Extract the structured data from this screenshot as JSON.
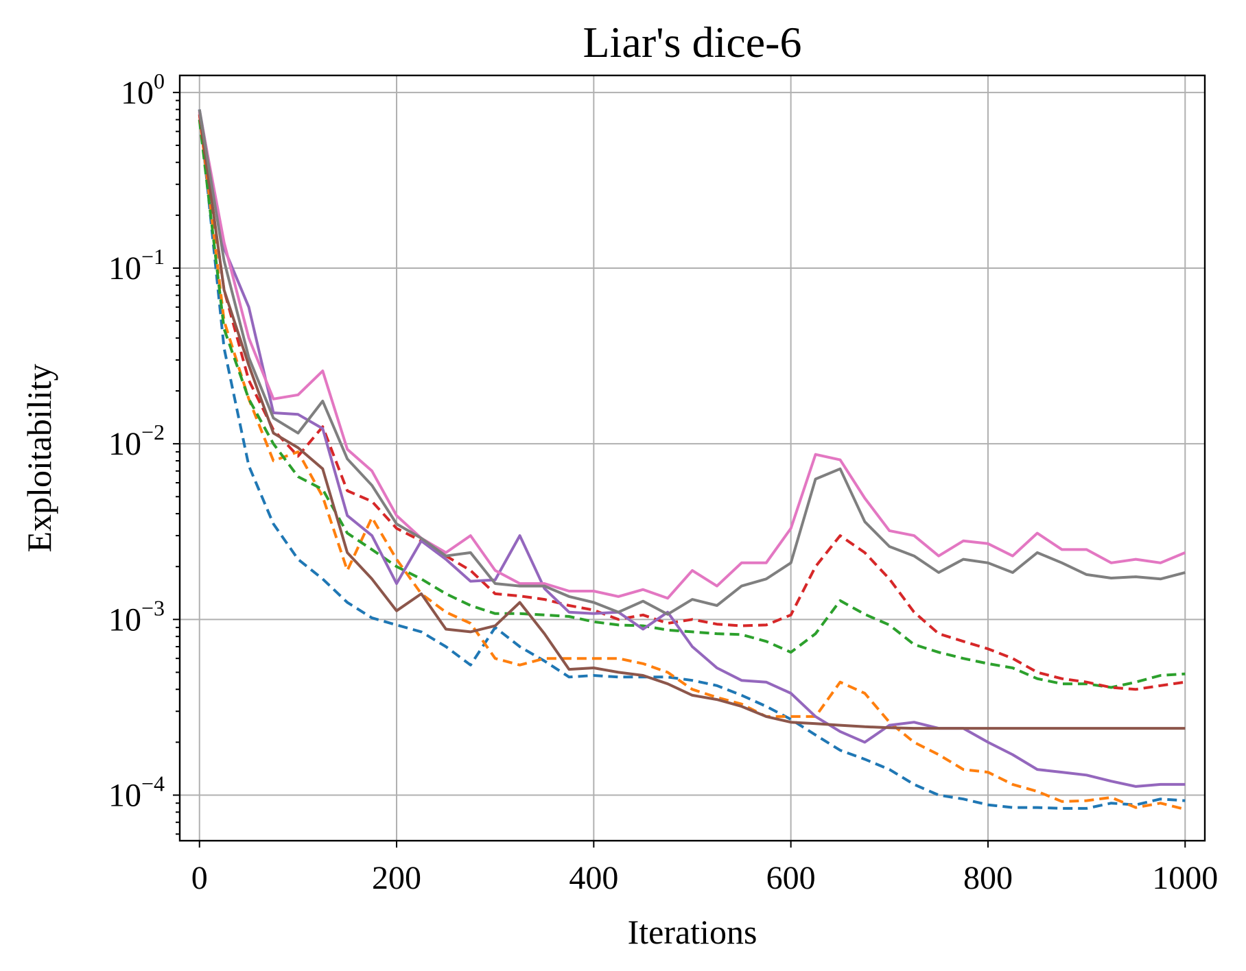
{
  "chart_data": {
    "type": "line",
    "title": "Liar's dice-6",
    "xlabel": "Iterations",
    "ylabel": "Exploitability",
    "xlim": [
      -20,
      1020
    ],
    "ylim": [
      5.5e-05,
      1.25
    ],
    "yscale": "log",
    "grid": true,
    "xticks": [
      0,
      200,
      400,
      600,
      800,
      1000
    ],
    "xtick_labels": [
      "0",
      "200",
      "400",
      "600",
      "800",
      "1000"
    ],
    "yticks": [
      1,
      0.1,
      0.01,
      0.001,
      0.0001
    ],
    "ytick_labels": [
      {
        "base": "10",
        "exp": "0"
      },
      {
        "base": "10",
        "exp": "−1"
      },
      {
        "base": "10",
        "exp": "−2"
      },
      {
        "base": "10",
        "exp": "−3"
      },
      {
        "base": "10",
        "exp": "−4"
      }
    ],
    "x": [
      0,
      25,
      50,
      75,
      100,
      125,
      150,
      175,
      200,
      225,
      250,
      275,
      300,
      325,
      350,
      375,
      400,
      425,
      450,
      475,
      500,
      525,
      550,
      575,
      600,
      625,
      650,
      675,
      700,
      725,
      750,
      775,
      800,
      825,
      850,
      875,
      900,
      925,
      950,
      975,
      1000
    ],
    "series": [
      {
        "color": "#1f77b4",
        "style": "dashed",
        "values": [
          0.8,
          0.035,
          0.0075,
          0.0035,
          0.0022,
          0.0017,
          0.00125,
          0.00102,
          0.00093,
          0.00085,
          0.0007,
          0.00055,
          0.0009,
          0.0007,
          0.00058,
          0.00047,
          0.00048,
          0.00047,
          0.00047,
          0.00047,
          0.00045,
          0.00042,
          0.00037,
          0.00032,
          0.00027,
          0.00022,
          0.00018,
          0.00016,
          0.00014,
          0.000115,
          0.0001,
          9.5e-05,
          8.8e-05,
          8.5e-05,
          8.5e-05,
          8.4e-05,
          8.4e-05,
          9e-05,
          8.8e-05,
          9.5e-05,
          9.3e-05
        ]
      },
      {
        "color": "#ff7f0e",
        "style": "dashed",
        "values": [
          0.75,
          0.05,
          0.018,
          0.008,
          0.009,
          0.005,
          0.0019,
          0.0038,
          0.0022,
          0.0014,
          0.0011,
          0.00095,
          0.0006,
          0.00055,
          0.0006,
          0.0006,
          0.0006,
          0.0006,
          0.00056,
          0.0005,
          0.0004,
          0.00036,
          0.00033,
          0.00028,
          0.00028,
          0.00028,
          0.00044,
          0.00038,
          0.00026,
          0.0002,
          0.00017,
          0.00014,
          0.000135,
          0.000115,
          0.000105,
          9.2e-05,
          9.3e-05,
          9.7e-05,
          8.5e-05,
          9e-05,
          8.3e-05
        ]
      },
      {
        "color": "#2ca02c",
        "style": "dashed",
        "values": [
          0.7,
          0.045,
          0.018,
          0.01,
          0.0065,
          0.0055,
          0.0031,
          0.0025,
          0.002,
          0.0017,
          0.0014,
          0.0012,
          0.00108,
          0.00108,
          0.00106,
          0.00104,
          0.00097,
          0.00093,
          0.00092,
          0.00087,
          0.00085,
          0.00083,
          0.00082,
          0.00075,
          0.00065,
          0.00083,
          0.00128,
          0.00107,
          0.00093,
          0.00072,
          0.00065,
          0.0006,
          0.00056,
          0.00053,
          0.00046,
          0.00043,
          0.00043,
          0.00041,
          0.00044,
          0.00048,
          0.00049
        ]
      },
      {
        "color": "#d62728",
        "style": "dashed",
        "values": [
          0.75,
          0.075,
          0.023,
          0.012,
          0.0085,
          0.0125,
          0.0054,
          0.0047,
          0.0033,
          0.0028,
          0.0023,
          0.0019,
          0.0014,
          0.00136,
          0.0013,
          0.0012,
          0.00113,
          0.001,
          0.00106,
          0.00095,
          0.001,
          0.00094,
          0.00092,
          0.00093,
          0.00106,
          0.002,
          0.003,
          0.0024,
          0.0017,
          0.0011,
          0.00083,
          0.00075,
          0.00068,
          0.0006,
          0.0005,
          0.00046,
          0.00044,
          0.00041,
          0.0004,
          0.00042,
          0.00044
        ]
      },
      {
        "color": "#9467bd",
        "style": "solid",
        "values": [
          0.8,
          0.13,
          0.06,
          0.015,
          0.0147,
          0.0122,
          0.0039,
          0.003,
          0.0016,
          0.0028,
          0.0022,
          0.00165,
          0.00168,
          0.003,
          0.0015,
          0.0011,
          0.00108,
          0.0011,
          0.00088,
          0.0011,
          0.0007,
          0.00053,
          0.00045,
          0.00044,
          0.00038,
          0.00028,
          0.00023,
          0.0002,
          0.00025,
          0.00026,
          0.00024,
          0.00024,
          0.0002,
          0.00017,
          0.00014,
          0.000135,
          0.00013,
          0.00012,
          0.000112,
          0.000115,
          0.000115
        ]
      },
      {
        "color": "#8c564b",
        "style": "solid",
        "values": [
          0.78,
          0.075,
          0.028,
          0.0115,
          0.0095,
          0.0072,
          0.0024,
          0.0017,
          0.00112,
          0.0014,
          0.00088,
          0.00085,
          0.00092,
          0.00125,
          0.00083,
          0.00052,
          0.00053,
          0.0005,
          0.00048,
          0.00043,
          0.00037,
          0.00035,
          0.00032,
          0.00028,
          0.00026,
          0.000255,
          0.00025,
          0.000245,
          0.000242,
          0.00024,
          0.00024,
          0.00024,
          0.00024,
          0.00024,
          0.00024,
          0.00024,
          0.00024,
          0.00024,
          0.00024,
          0.00024,
          0.00024
        ]
      },
      {
        "color": "#e377c2",
        "style": "solid",
        "values": [
          0.78,
          0.14,
          0.04,
          0.018,
          0.019,
          0.026,
          0.0093,
          0.007,
          0.0039,
          0.0029,
          0.0024,
          0.003,
          0.0019,
          0.0016,
          0.0016,
          0.00145,
          0.00145,
          0.00135,
          0.00148,
          0.00132,
          0.0019,
          0.00155,
          0.0021,
          0.0021,
          0.0033,
          0.0087,
          0.0081,
          0.0049,
          0.0032,
          0.003,
          0.0023,
          0.0028,
          0.0027,
          0.0023,
          0.0031,
          0.0025,
          0.0025,
          0.0021,
          0.0022,
          0.0021,
          0.0024
        ]
      },
      {
        "color": "#7f7f7f",
        "style": "solid",
        "values": [
          0.8,
          0.11,
          0.031,
          0.014,
          0.0115,
          0.0175,
          0.0082,
          0.0058,
          0.0035,
          0.0029,
          0.0023,
          0.0024,
          0.0016,
          0.00155,
          0.00155,
          0.00135,
          0.00125,
          0.0011,
          0.00127,
          0.00107,
          0.0013,
          0.0012,
          0.00155,
          0.0017,
          0.0021,
          0.0063,
          0.0072,
          0.0036,
          0.0026,
          0.0023,
          0.00185,
          0.0022,
          0.0021,
          0.00185,
          0.0024,
          0.0021,
          0.0018,
          0.00172,
          0.00175,
          0.0017,
          0.00185
        ]
      }
    ]
  }
}
